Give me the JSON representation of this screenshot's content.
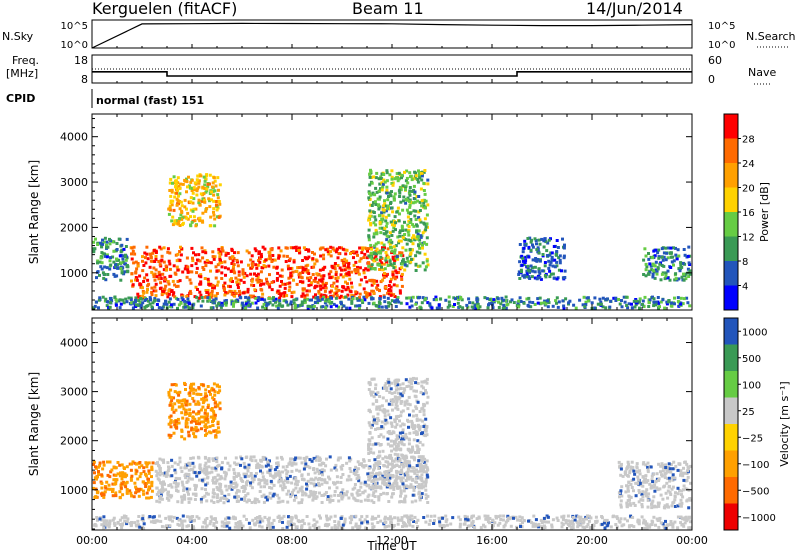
{
  "header": {
    "station": "Kerguelen (fitACF)",
    "beam": "Beam 11",
    "date": "14/Jun/2014"
  },
  "top_panels": {
    "nsky_label": "N.Sky",
    "nsearch_label": "N.Search",
    "nsky_ticks": [
      "10^5",
      "10^0"
    ],
    "nsky_right_ticks": [
      "10^5",
      "10^0"
    ],
    "freq_label_1": "Freq.",
    "freq_label_2": "[MHz]",
    "freq_ticks": [
      "18",
      "8"
    ],
    "nave_label": "Nave",
    "nave_ticks": [
      "60",
      "0"
    ],
    "cpid_label": "CPID",
    "cpid_value": "normal (fast) 151"
  },
  "colors": {
    "power": [
      "#0000ff",
      "#2255bb",
      "#3a9a55",
      "#66cc44",
      "#ffd200",
      "#ffa000",
      "#ff6a00",
      "#ff0000"
    ],
    "velocity": [
      "#ee0000",
      "#ff6a00",
      "#ffa000",
      "#ffd200",
      "#c8c8c8",
      "#66cc44",
      "#3a9a55",
      "#2255bb"
    ],
    "ground_scatter": "#c8c8c8"
  },
  "time_axis": {
    "ticks": [
      "00:00",
      "04:00",
      "08:00",
      "12:00",
      "16:00",
      "20:00",
      "00:00"
    ],
    "label": "Time UT"
  },
  "chart_data": [
    {
      "type": "line",
      "panel": "N.Sky / N.Search",
      "x_unit": "hours UT",
      "x": [
        0,
        2,
        4,
        6,
        8,
        10,
        12,
        14,
        16,
        18,
        20,
        22,
        24
      ],
      "nsky": [
        0,
        20000,
        22000,
        25000,
        24000,
        22000,
        21000,
        15000,
        12000,
        10000,
        10000,
        12000,
        15000
      ],
      "ylim": [
        1,
        100000
      ],
      "yscale": "log"
    },
    {
      "type": "line",
      "panel": "Freq / Nave",
      "x_unit": "hours UT",
      "frequency_mhz": [
        {
          "x": 0,
          "y": 12
        },
        {
          "x": 3,
          "y": 12
        },
        {
          "x": 3,
          "y": 10.5
        },
        {
          "x": 17,
          "y": 10.5
        },
        {
          "x": 17,
          "y": 12
        },
        {
          "x": 24,
          "y": 12
        }
      ],
      "nave": [
        {
          "x": 0,
          "y": 30
        },
        {
          "x": 24,
          "y": 30
        }
      ],
      "freq_ylim": [
        8,
        18
      ],
      "nave_ylim": [
        0,
        60
      ]
    },
    {
      "type": "heatmap",
      "title": "",
      "panel": "Power",
      "ylabel": "Slant Range [km]",
      "xlabel": "Time UT",
      "x_unit": "hours UT",
      "ylim": [
        180,
        4500
      ],
      "xlim": [
        0,
        24
      ],
      "yticks": [
        "1000",
        "2000",
        "3000",
        "4000"
      ],
      "colorbar": {
        "label": "Power [dB]",
        "ticks": [
          "4",
          "8",
          "12",
          "16",
          "20",
          "24",
          "28"
        ],
        "range": [
          0,
          30
        ]
      },
      "scatter_regions": [
        {
          "t0": 0.0,
          "t1": 1.5,
          "r0": 800,
          "r1": 1800,
          "value": 8
        },
        {
          "t0": 1.5,
          "t1": 12.5,
          "r0": 400,
          "r1": 1600,
          "value": 26
        },
        {
          "t0": 3.0,
          "t1": 5.2,
          "r0": 2000,
          "r1": 3200,
          "value": 18
        },
        {
          "t0": 11.0,
          "t1": 13.5,
          "r0": 1000,
          "r1": 3300,
          "value": 12
        },
        {
          "t0": 0.0,
          "t1": 24.0,
          "r0": 180,
          "r1": 500,
          "value": 8
        },
        {
          "t0": 17.0,
          "t1": 19.0,
          "r0": 800,
          "r1": 1800,
          "value": 6
        },
        {
          "t0": 22.0,
          "t1": 24.0,
          "r0": 800,
          "r1": 1600,
          "value": 8
        }
      ]
    },
    {
      "type": "heatmap",
      "panel": "Velocity",
      "ylabel": "Slant Range [km]",
      "xlabel": "Time UT",
      "x_unit": "hours UT",
      "ylim": [
        180,
        4500
      ],
      "xlim": [
        0,
        24
      ],
      "yticks": [
        "1000",
        "2000",
        "3000",
        "4000"
      ],
      "colorbar": {
        "label": "Velocity [m s⁻¹]",
        "ticks": [
          "1000",
          "500",
          "100",
          "25",
          "−25",
          "−100",
          "−500",
          "−1000"
        ],
        "range": [
          -1000,
          1000
        ]
      },
      "scatter_regions": [
        {
          "t0": 0.0,
          "t1": 2.5,
          "r0": 800,
          "r1": 1600,
          "value": -100
        },
        {
          "t0": 2.5,
          "t1": 13.5,
          "r0": 700,
          "r1": 1700,
          "value": 0
        },
        {
          "t0": 3.0,
          "t1": 5.2,
          "r0": 2000,
          "r1": 3200,
          "value": -100
        },
        {
          "t0": 11.0,
          "t1": 13.5,
          "r0": 1000,
          "r1": 3300,
          "value": 0
        },
        {
          "t0": 0.0,
          "t1": 24.0,
          "r0": 180,
          "r1": 500,
          "value": 0
        },
        {
          "t0": 21.0,
          "t1": 24.0,
          "r0": 600,
          "r1": 1600,
          "value": 0
        }
      ]
    }
  ]
}
